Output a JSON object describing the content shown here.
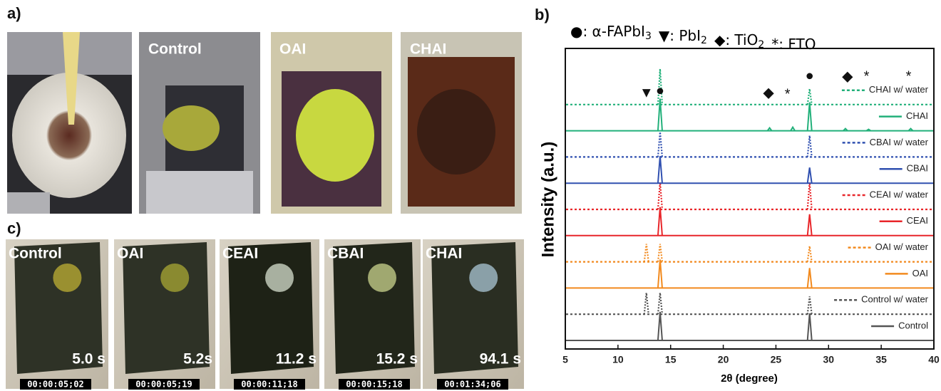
{
  "figure": {
    "panel_a": {
      "label": "a)",
      "photos": [
        "Control",
        "OAI",
        "CHAI"
      ]
    },
    "panel_c": {
      "label": "c)",
      "photos": [
        {
          "label": "Control",
          "time": "5.0 s",
          "stamp": "00:00:05;02"
        },
        {
          "label": "OAI",
          "time": "5.2s",
          "stamp": "00:00:05;19"
        },
        {
          "label": "CEAI",
          "time": "11.2 s",
          "stamp": "00:00:11;18"
        },
        {
          "label": "CBAI",
          "time": "15.2 s",
          "stamp": "00:00:15;18"
        },
        {
          "label": "CHAI",
          "time": "94.1 s",
          "stamp": "00:01:34;06"
        }
      ]
    },
    "panel_b": {
      "label": "b)"
    }
  },
  "chart_data": {
    "type": "line",
    "header": [
      {
        "text": "●: α-FAPbI",
        "sub": "3"
      },
      {
        "text": "▼: PbI",
        "sub": "2"
      },
      {
        "text": "◆: TiO",
        "sub": "2"
      },
      {
        "text": "*: FTO",
        "sub": null
      }
    ],
    "x_label": "2θ (degree)",
    "y_label": "Intensity (a.u.)",
    "xlim": [
      5,
      40
    ],
    "xticks": [
      5,
      10,
      15,
      20,
      25,
      30,
      35,
      40
    ],
    "annotations": [
      {
        "text": "●",
        "x": 14.0
      },
      {
        "text": "▼",
        "x": 12.7
      },
      {
        "text": "◆",
        "x": 24.3
      },
      {
        "text": "*",
        "x": 26.1
      },
      {
        "text": "●",
        "x": 28.2
      },
      {
        "text": "◆",
        "x": 31.8
      },
      {
        "text": "*",
        "x": 33.6
      },
      {
        "text": "*",
        "x": 37.6
      }
    ],
    "series": [
      {
        "name": "Control",
        "color": "#555555",
        "dashed": false,
        "peaks_x": [
          14.0,
          28.2
        ],
        "peaks_y": [
          40,
          38
        ]
      },
      {
        "name": "Control w/ water",
        "color": "#555555",
        "dashed": true,
        "peaks_x": [
          12.7,
          14.0,
          28.2
        ],
        "peaks_y": [
          30,
          30,
          25
        ]
      },
      {
        "name": "OAI",
        "color": "#f28a1e",
        "dashed": false,
        "peaks_x": [
          14.0,
          28.2
        ],
        "peaks_y": [
          40,
          28
        ]
      },
      {
        "name": "OAI w/ water",
        "color": "#f28a1e",
        "dashed": true,
        "peaks_x": [
          12.7,
          14.0,
          28.2
        ],
        "peaks_y": [
          25,
          25,
          22
        ]
      },
      {
        "name": "CEAI",
        "color": "#e8262a",
        "dashed": false,
        "peaks_x": [
          14.0,
          28.2
        ],
        "peaks_y": [
          40,
          30
        ]
      },
      {
        "name": "CEAI w/ water",
        "color": "#e8262a",
        "dashed": true,
        "peaks_x": [
          14.0,
          28.2
        ],
        "peaks_y": [
          38,
          38
        ]
      },
      {
        "name": "CBAI",
        "color": "#3050b0",
        "dashed": false,
        "peaks_x": [
          14.0,
          28.2
        ],
        "peaks_y": [
          38,
          22
        ]
      },
      {
        "name": "CBAI w/ water",
        "color": "#3050b0",
        "dashed": true,
        "peaks_x": [
          14.0,
          28.2
        ],
        "peaks_y": [
          35,
          30
        ]
      },
      {
        "name": "CHAI",
        "color": "#22b07a",
        "dashed": false,
        "peaks_x": [
          14.0,
          24.4,
          26.6,
          28.2,
          31.6,
          33.8,
          37.8
        ],
        "peaks_y": [
          45,
          4,
          5,
          40,
          3,
          2,
          3
        ]
      },
      {
        "name": "CHAI w/ water",
        "color": "#22b07a",
        "dashed": true,
        "peaks_x": [
          14.0,
          28.2
        ],
        "peaks_y": [
          50,
          22
        ]
      }
    ]
  }
}
